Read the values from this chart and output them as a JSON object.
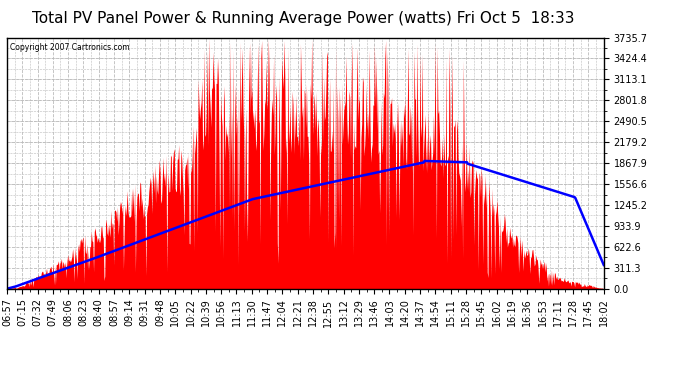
{
  "title": "Total PV Panel Power & Running Average Power (watts) Fri Oct 5  18:33",
  "copyright": "Copyright 2007 Cartronics.com",
  "background_color": "#ffffff",
  "plot_bg_color": "#ffffff",
  "y_max": 3735.7,
  "y_min": 0.0,
  "y_ticks": [
    0.0,
    311.3,
    622.6,
    933.9,
    1245.2,
    1556.6,
    1867.9,
    2179.2,
    2490.5,
    2801.8,
    3113.1,
    3424.4,
    3735.7
  ],
  "x_labels": [
    "06:57",
    "07:15",
    "07:32",
    "07:49",
    "08:06",
    "08:23",
    "08:40",
    "08:57",
    "09:14",
    "09:31",
    "09:48",
    "10:05",
    "10:22",
    "10:39",
    "10:56",
    "11:13",
    "11:30",
    "11:47",
    "12:04",
    "12:21",
    "12:38",
    "12:55",
    "13:12",
    "13:29",
    "13:46",
    "14:03",
    "14:20",
    "14:37",
    "14:54",
    "15:11",
    "15:28",
    "15:45",
    "16:02",
    "16:19",
    "16:36",
    "16:53",
    "17:11",
    "17:28",
    "17:45",
    "18:02"
  ],
  "fill_color": "#ff0000",
  "line_color": "#0000ff",
  "grid_color": "#bbbbbb",
  "title_fontsize": 11,
  "tick_fontsize": 7
}
